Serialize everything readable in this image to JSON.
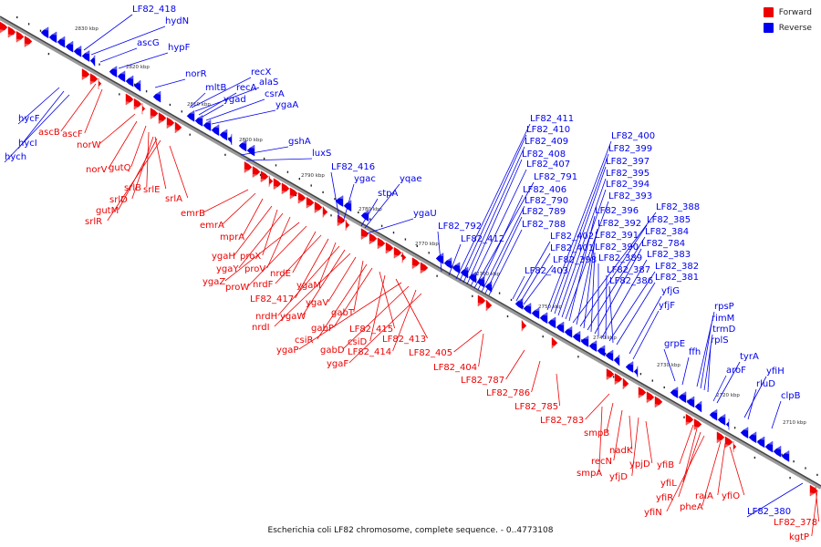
{
  "caption": "Escherichia coli LF82 chromosome, complete sequence. - 0..4773108",
  "legend": [
    {
      "label": "Forward",
      "color": "#ee0000"
    },
    {
      "label": "Reverse",
      "color": "#0000ee"
    }
  ],
  "ticks": [
    "2830 kbp",
    "2820 kbp",
    "2810 kbp",
    "2800 kbp",
    "2790 kbp",
    "2780 kbp",
    "2770 kbp",
    "2760 kbp",
    "2750 kbp",
    "2740 kbp",
    "2730 kbp",
    "2720 kbp",
    "2710 kbp"
  ],
  "forward_genes": [
    "ascB",
    "ascF",
    "norW",
    "norV",
    "gutQ",
    "srlB",
    "srlE",
    "srlD",
    "gutM",
    "srlR",
    "srlA",
    "emrB",
    "emrA",
    "mprA",
    "ygaH",
    "proX",
    "ygaY",
    "proV",
    "ygaZ",
    "proW",
    "nrdE",
    "nrdF",
    "LF82_417",
    "ygaM",
    "nrdH",
    "ygaW",
    "nrdI",
    "ygaV",
    "gabT",
    "csiR",
    "gabP",
    "LF82_415",
    "csiD",
    "LF82_413",
    "ygaP",
    "gabD",
    "LF82_414",
    "ygaF",
    "LF82_405",
    "LF82_404",
    "LF82_787",
    "LF82_786",
    "LF82_785",
    "LF82_783",
    "smpB",
    "nadK",
    "recN",
    "ypjD",
    "smpA",
    "yfjD",
    "yfiB",
    "yfiL",
    "yfiR",
    "yfiN",
    "raiA",
    "pheA",
    "yfiO",
    "LF82_378",
    "kgtP"
  ],
  "reverse_genes": [
    "LF82_418",
    "hydN",
    "ascG",
    "hypF",
    "norR",
    "mltB",
    "recX",
    "alaS",
    "recA",
    "ygad",
    "csrA",
    "ygaA",
    "gshA",
    "luxS",
    "hycF",
    "hycI",
    "hych",
    "LF82_416",
    "ygac",
    "yqae",
    "stpA",
    "ygaU",
    "LF82_792",
    "LF82_412",
    "LF82_411",
    "LF82_410",
    "LF82_409",
    "LF82_408",
    "LF82_407",
    "LF82_791",
    "LF82_406",
    "LF82_790",
    "LF82_789",
    "LF82_788",
    "LF82_402",
    "LF82_401",
    "LF82_398",
    "LF82_403",
    "LF82_400",
    "LF82_399",
    "LF82_397",
    "LF82_395",
    "LF82_394",
    "LF82_393",
    "LF82_396",
    "LF82_388",
    "LF82_392",
    "LF82_385",
    "LF82_391",
    "LF82_384",
    "LF82_390",
    "LF82_784",
    "LF82_389",
    "LF82_383",
    "LF82_387",
    "LF82_382",
    "LF82_386",
    "LF82_381",
    "yfjG",
    "yfjF",
    "rpsP",
    "rimM",
    "trmD",
    "rplS",
    "grpE",
    "ffh",
    "tyrA",
    "aroF",
    "yfiH",
    "rluD",
    "clpB",
    "LF82_380"
  ]
}
